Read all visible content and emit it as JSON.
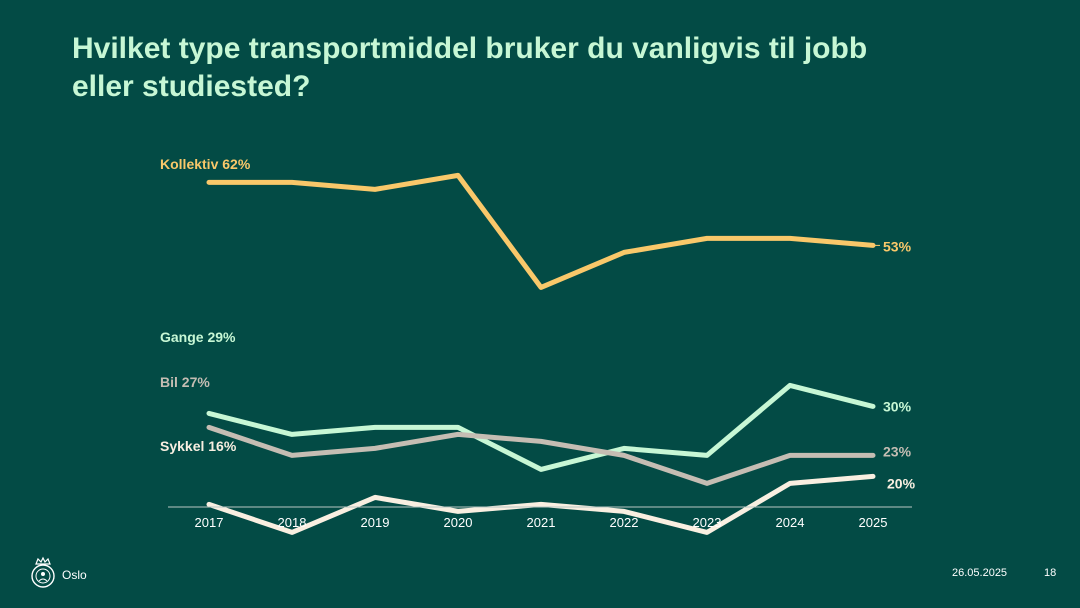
{
  "slide": {
    "title": "Hvilket type transportmiddel bruker du vanligvis til jobb eller studiested?",
    "brand": "Oslo",
    "date": "26.05.2025",
    "page": "18"
  },
  "colors": {
    "background": "#034b45",
    "title": "#c7f7d5",
    "axis": "#b8c7c3"
  },
  "chart_data": {
    "type": "line",
    "title": "Hvilket type transportmiddel bruker du vanligvis til jobb eller studiested?",
    "x": [
      "2017",
      "2018",
      "2019",
      "2020",
      "2021",
      "2022",
      "2023",
      "2024",
      "2025"
    ],
    "ylim": [
      0,
      100
    ],
    "grid": false,
    "legend": "inline",
    "series": [
      {
        "name": "Kollektiv",
        "color": "#f9c86a",
        "values": [
          62,
          62,
          61,
          63,
          47,
          52,
          54,
          54,
          53
        ],
        "start_label": "Kollektiv  62%",
        "end_label": "53%"
      },
      {
        "name": "Gange",
        "color": "#c7f7d5",
        "values": [
          29,
          26,
          27,
          27,
          21,
          24,
          23,
          33,
          30
        ],
        "start_label": "Gange 29%",
        "end_label": "30%"
      },
      {
        "name": "Bil",
        "color": "#c5bdb3",
        "values": [
          27,
          23,
          24,
          26,
          25,
          23,
          19,
          23,
          23
        ],
        "start_label": "Bil 27%",
        "end_label": "23%"
      },
      {
        "name": "Sykkel",
        "color": "#f9efe1",
        "values": [
          16,
          12,
          17,
          15,
          16,
          15,
          12,
          19,
          20
        ],
        "start_label": "Sykkel 16%",
        "end_label": "20%"
      }
    ]
  }
}
